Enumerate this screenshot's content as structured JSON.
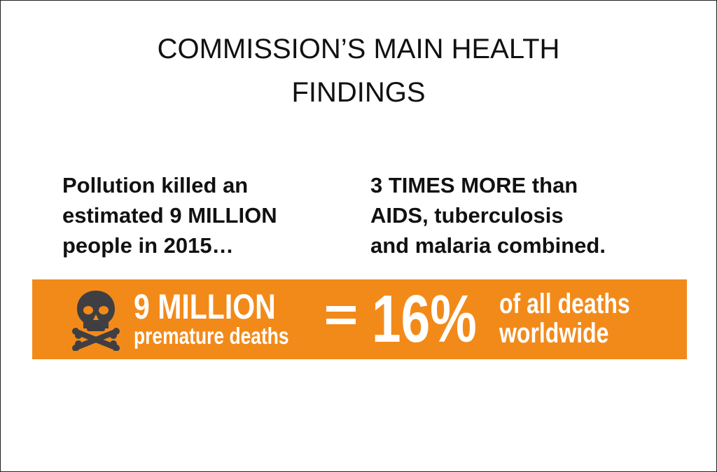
{
  "title_lines": [
    "COMMISSION’S MAIN HEALTH",
    "FINDINGS"
  ],
  "left_text": [
    "Pollution killed an",
    "estimated 9 MILLION",
    "people in 2015…"
  ],
  "right_text": [
    "3 TIMES MORE than",
    "AIDS, tuberculosis",
    "and malaria combined."
  ],
  "banner": {
    "icon": "skull-crossbones-icon",
    "headline": "9 MILLION",
    "subline": "premature deaths",
    "equals": "=",
    "percent": "16%",
    "right_lines": [
      "of all deaths",
      "worldwide"
    ],
    "color": "#F28A1A",
    "icon_color": "#3F3F43"
  }
}
